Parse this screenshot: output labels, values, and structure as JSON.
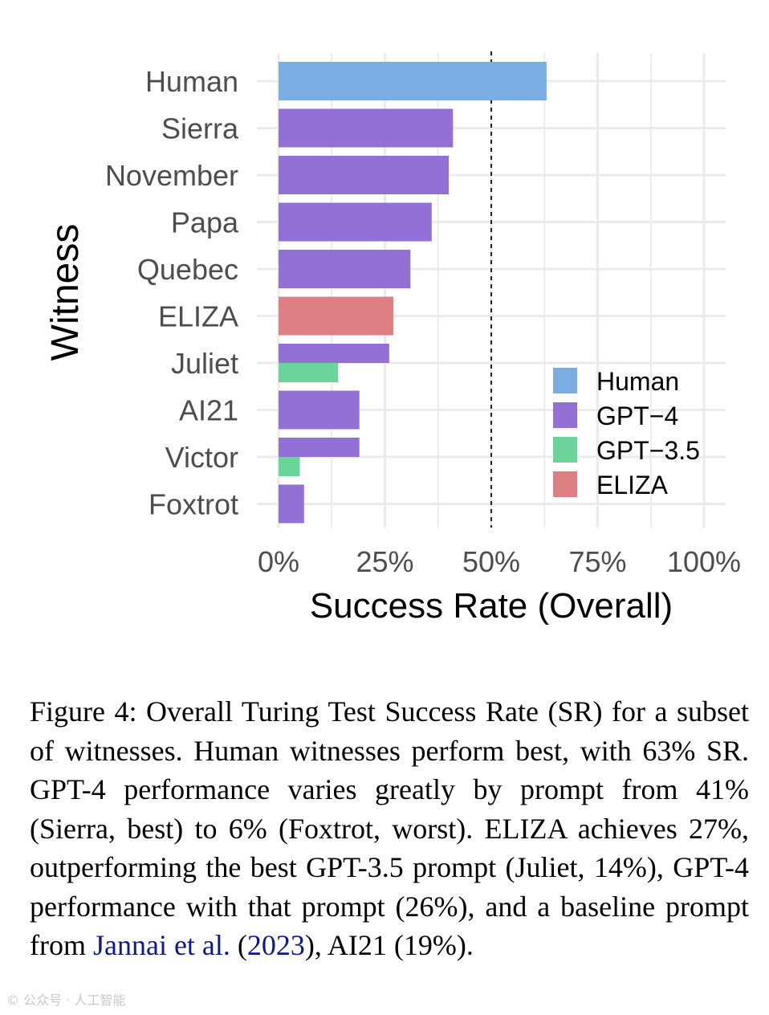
{
  "chart_data": {
    "type": "bar",
    "orientation": "horizontal",
    "categories": [
      "Human",
      "Sierra",
      "November",
      "Papa",
      "Quebec",
      "ELIZA",
      "Juliet",
      "AI21",
      "Victor",
      "Foxtrot"
    ],
    "series": [
      {
        "name": "Human",
        "color": "#7aaee2",
        "values": [
          63,
          null,
          null,
          null,
          null,
          null,
          null,
          null,
          null,
          null
        ]
      },
      {
        "name": "GPT−4",
        "color": "#9370d6",
        "values": [
          null,
          41,
          40,
          36,
          31,
          null,
          26,
          19,
          19,
          6
        ]
      },
      {
        "name": "GPT−3.5",
        "color": "#6bd49a",
        "values": [
          null,
          null,
          null,
          null,
          null,
          null,
          14,
          null,
          5,
          null
        ]
      },
      {
        "name": "ELIZA",
        "color": "#de7f84",
        "values": [
          null,
          null,
          null,
          null,
          null,
          27,
          null,
          null,
          null,
          null
        ]
      }
    ],
    "xlabel": "Success Rate (Overall)",
    "ylabel": "Witness",
    "xlim": [
      0,
      100
    ],
    "xticks": [
      "0%",
      "25%",
      "50%",
      "75%",
      "100%"
    ],
    "reference_line": {
      "x": 50,
      "style": "dashed"
    },
    "grid": true,
    "legend_position": "bottom-right"
  },
  "caption": {
    "part1": "Figure 4: Overall Turing Test Success Rate (SR) for a subset of witnesses. Human witnesses perform best, with 63% SR. GPT-4 performance varies greatly by prompt from 41% (Sierra, best) to 6% (Foxtrot, worst). ELIZA achieves 27%, outperforming the best GPT-3.5 prompt (Juliet, 14%), GPT-4 performance with that prompt (26%), and a baseline prompt from ",
    "cite_author": "Jannai et al.",
    "cite_open": " (",
    "cite_year": "2023",
    "part2": "), AI21 (19%)."
  },
  "watermark": "© 公众号 · 人工智能"
}
